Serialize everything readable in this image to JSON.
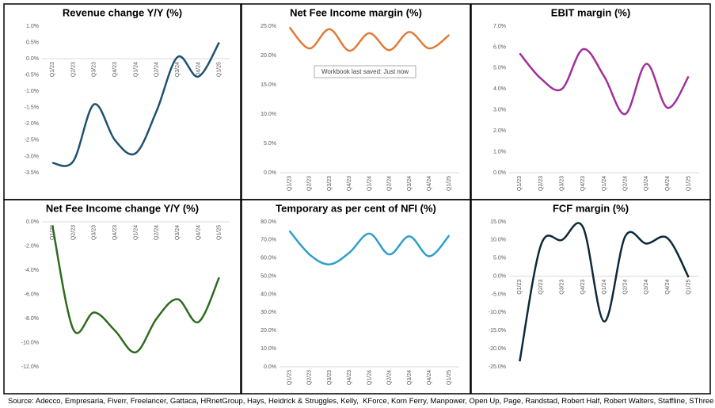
{
  "chart_data": [
    {
      "type": "line",
      "title": "Revenue change Y/Y (%)",
      "categories": [
        "Q1/23",
        "Q2/23",
        "Q3/23",
        "Q4/23",
        "Q1/24",
        "Q2/24",
        "Q3/24",
        "Q4/24",
        "Q1/25"
      ],
      "values": [
        -3.2,
        -3.15,
        -1.4,
        -2.5,
        -2.9,
        -1.6,
        0.05,
        -0.55,
        0.5
      ],
      "color": "#1d5270",
      "ylim": [
        -3.5,
        1.0
      ],
      "yticks": [
        {
          "value": 1.0,
          "label": "1.0%"
        },
        {
          "value": 0.5,
          "label": "0.5%"
        },
        {
          "value": 0.0,
          "label": "0.0%"
        },
        {
          "value": -0.5,
          "label": "-0.5%"
        },
        {
          "value": -1.0,
          "label": "-1.0%"
        },
        {
          "value": -1.5,
          "label": "-1.5%"
        },
        {
          "value": -2.0,
          "label": "-2.0%"
        },
        {
          "value": -2.5,
          "label": "-2.5%"
        },
        {
          "value": -3.0,
          "label": "-3.0%"
        },
        {
          "value": -3.5,
          "label": "-3.5%"
        }
      ]
    },
    {
      "type": "line",
      "title": "Net Fee Income  margin (%)",
      "categories": [
        "Q1/23",
        "Q2/23",
        "Q3/23",
        "Q4/23",
        "Q1/24",
        "Q2/24",
        "Q3/24",
        "Q4/24",
        "Q1/25"
      ],
      "values": [
        24.8,
        21.2,
        24.5,
        20.8,
        23.8,
        20.9,
        24.0,
        21.2,
        23.5
      ],
      "color": "#e07b39",
      "ylim": [
        0,
        25
      ],
      "yticks": [
        {
          "value": 0,
          "label": "0.0%"
        },
        {
          "value": 5,
          "label": "5.0%"
        },
        {
          "value": 10,
          "label": "10.0%"
        },
        {
          "value": 15,
          "label": "15.0%"
        },
        {
          "value": 20,
          "label": "20.0%"
        },
        {
          "value": 25,
          "label": "25.0%"
        }
      ]
    },
    {
      "type": "line",
      "title": "EBIT margin (%)",
      "categories": [
        "Q1/23",
        "Q2/23",
        "Q3/23",
        "Q4/23",
        "Q1/24",
        "Q2/24",
        "Q3/24",
        "Q4/24",
        "Q1/25"
      ],
      "values": [
        5.7,
        4.5,
        4.0,
        5.9,
        4.6,
        2.8,
        5.2,
        3.1,
        4.6
      ],
      "color": "#a0309a",
      "ylim": [
        0,
        7
      ],
      "yticks": [
        {
          "value": 0,
          "label": "0.0%"
        },
        {
          "value": 1,
          "label": "1.0%"
        },
        {
          "value": 2,
          "label": "2.0%"
        },
        {
          "value": 3,
          "label": "3.0%"
        },
        {
          "value": 4,
          "label": "4.0%"
        },
        {
          "value": 5,
          "label": "5.0%"
        },
        {
          "value": 6,
          "label": "6.0%"
        },
        {
          "value": 7,
          "label": "7.0%"
        }
      ]
    },
    {
      "type": "line",
      "title": "Net Fee Income change Y/Y (%)",
      "categories": [
        "Q1/23",
        "Q2/23",
        "Q3/23",
        "Q4/23",
        "Q1/24",
        "Q2/24",
        "Q3/24",
        "Q4/24",
        "Q1/25"
      ],
      "values": [
        -0.3,
        -8.9,
        -7.5,
        -9.0,
        -10.8,
        -8.0,
        -6.4,
        -8.3,
        -4.6
      ],
      "color": "#2e6b1e",
      "ylim": [
        -12,
        0
      ],
      "yticks": [
        {
          "value": 0,
          "label": "0.0%"
        },
        {
          "value": -2,
          "label": "-2.0%"
        },
        {
          "value": -4,
          "label": "-4.0%"
        },
        {
          "value": -6,
          "label": "-6.0%"
        },
        {
          "value": -8,
          "label": "-8.0%"
        },
        {
          "value": -10,
          "label": "-10.0%"
        },
        {
          "value": -12,
          "label": "-12.0%"
        }
      ]
    },
    {
      "type": "line",
      "title": "Temporary as per cent of NFI (%)",
      "categories": [
        "Q1/23",
        "Q2/23",
        "Q3/23",
        "Q4/23",
        "Q1/24",
        "Q2/24",
        "Q3/24",
        "Q4/24",
        "Q1/25"
      ],
      "values": [
        75,
        62,
        56.5,
        63,
        73.5,
        62,
        72,
        61,
        72.5
      ],
      "color": "#2e9fc9",
      "ylim": [
        0,
        80
      ],
      "yticks": [
        {
          "value": 0,
          "label": "0.0%"
        },
        {
          "value": 10,
          "label": "10.0%"
        },
        {
          "value": 20,
          "label": "20.0%"
        },
        {
          "value": 30,
          "label": "30.0%"
        },
        {
          "value": 40,
          "label": "40.0%"
        },
        {
          "value": 50,
          "label": "50.0%"
        },
        {
          "value": 60,
          "label": "60.0%"
        },
        {
          "value": 70,
          "label": "70.0%"
        },
        {
          "value": 80,
          "label": "80.0%"
        }
      ]
    },
    {
      "type": "line",
      "title": "FCF margin (%)",
      "categories": [
        "Q1/23",
        "Q2/23",
        "Q3/23",
        "Q4/23",
        "Q1/24",
        "Q2/24",
        "Q3/24",
        "Q4/24",
        "Q1/25"
      ],
      "values": [
        -23.5,
        8.5,
        10,
        13.5,
        -12.5,
        11,
        9,
        10.5,
        -0.3
      ],
      "color": "#0d2a3a",
      "ylim": [
        -25,
        15
      ],
      "yticks": [
        {
          "value": 15,
          "label": "15.0%"
        },
        {
          "value": 10,
          "label": "10.0%"
        },
        {
          "value": 5,
          "label": "5.0%"
        },
        {
          "value": 0,
          "label": "0.0%"
        },
        {
          "value": -5,
          "label": "-5.0%"
        },
        {
          "value": -10,
          "label": "-10.0%"
        },
        {
          "value": -15,
          "label": "-15.0%"
        },
        {
          "value": -20,
          "label": "-20.0%"
        },
        {
          "value": -25,
          "label": "-25.0%"
        }
      ]
    }
  ],
  "tooltip": "Workbook last saved: Just now",
  "source": "Source: Adecco, Empresaria, Fiverr, Freelancer, Gattaca, HRnetGroup, Hays, Heidrick & Struggles, Kelly,  KForce, Korn Ferry, Manpower, Open Up, Page, Randstad, Robert Half, Robert Walters, Staffline, SThree"
}
